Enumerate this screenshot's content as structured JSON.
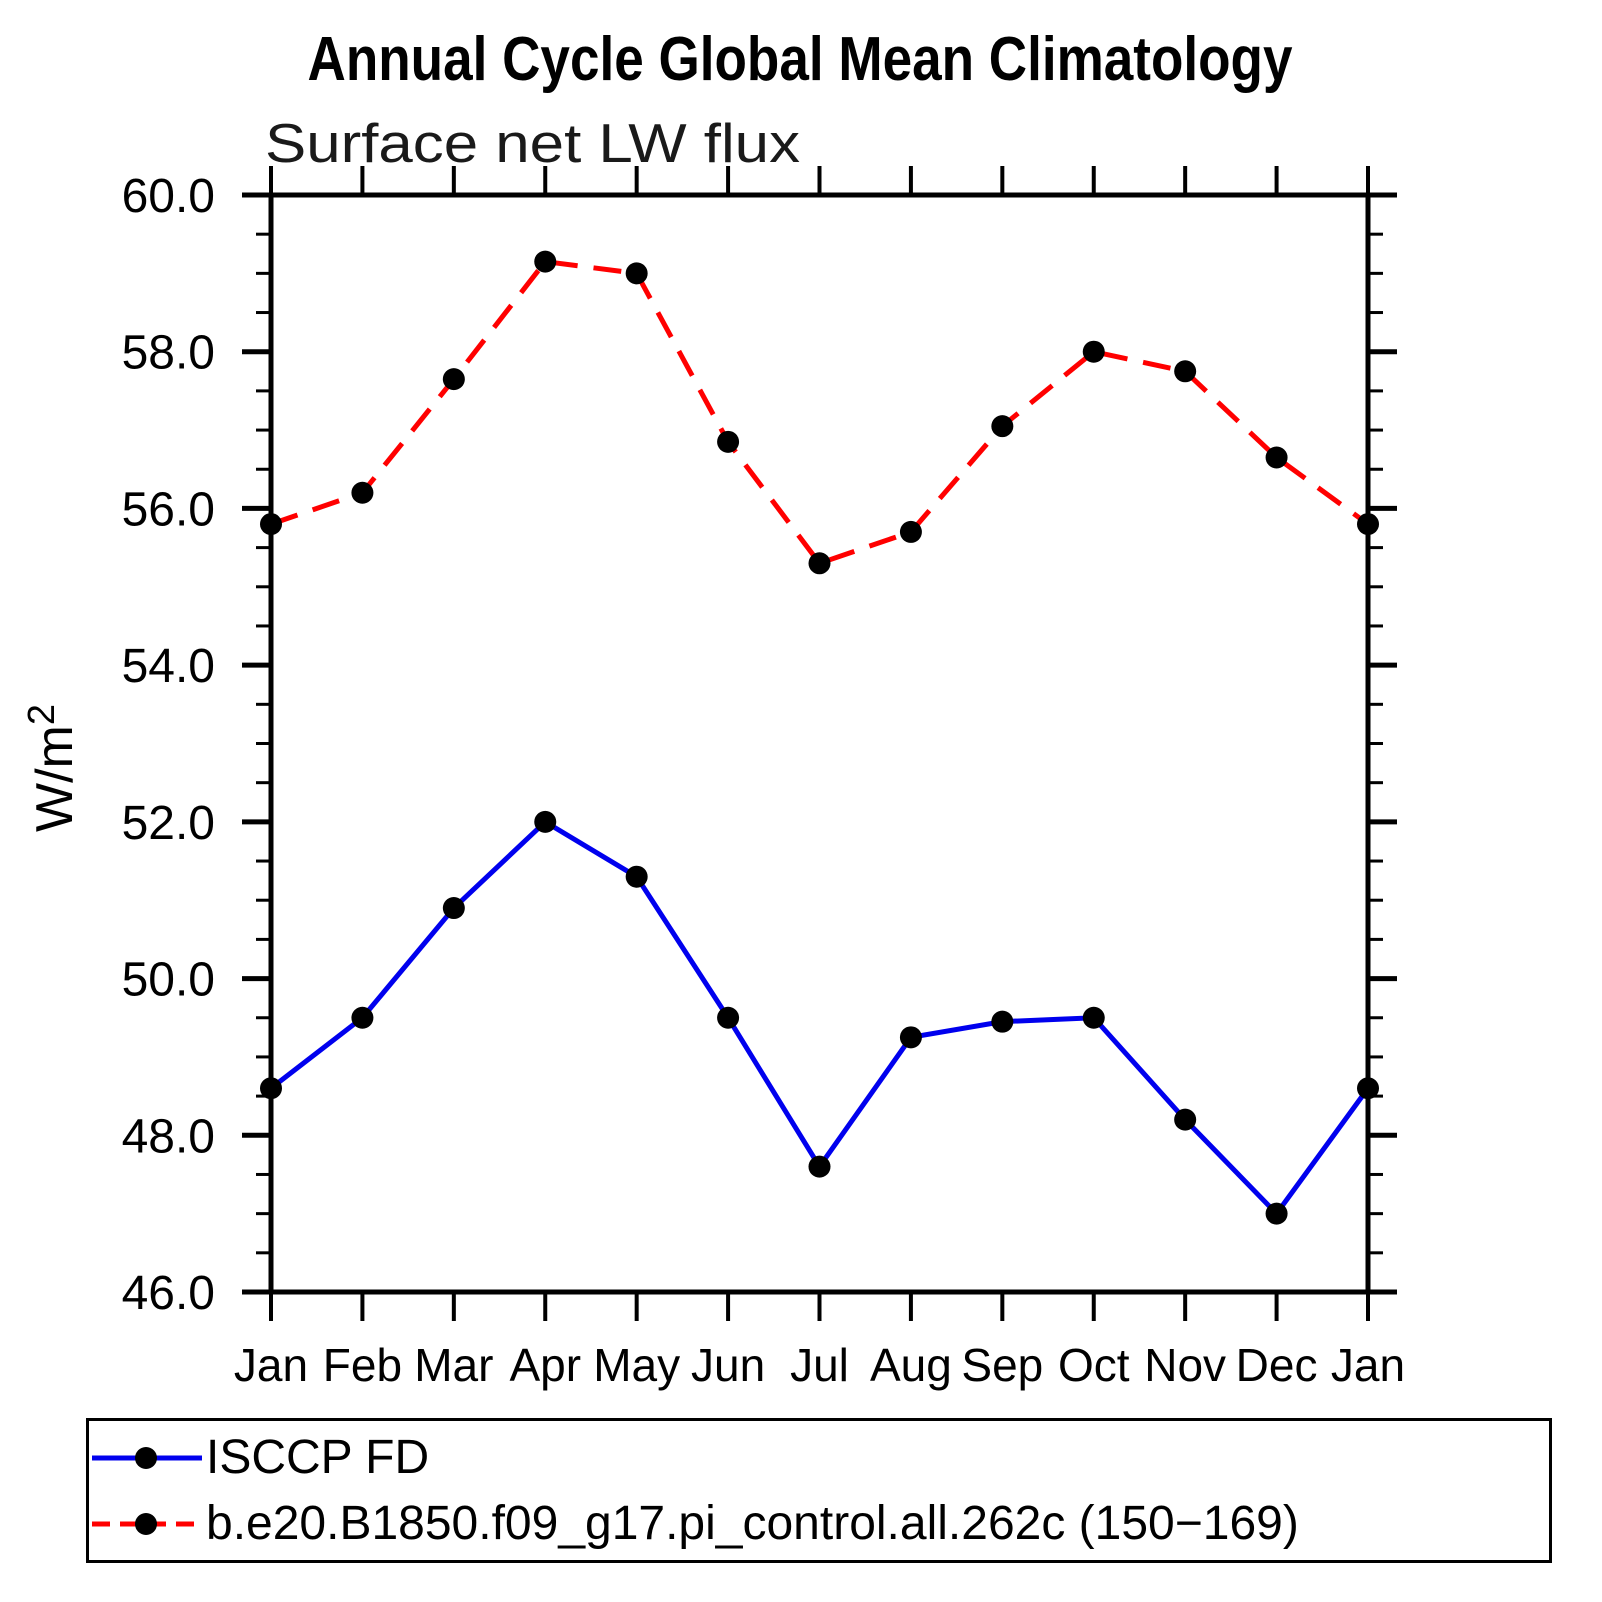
{
  "title": "Annual Cycle Global Mean Climatology",
  "subtitle": "Surface net LW flux",
  "ylabel": {
    "base": "W/m",
    "sup": "2"
  },
  "chart_data": {
    "type": "line",
    "title": "Annual Cycle Global Mean Climatology",
    "subtitle": "Surface net LW flux",
    "ylabel": "W/m^2",
    "x_categories": [
      "Jan",
      "Feb",
      "Mar",
      "Apr",
      "May",
      "Jun",
      "Jul",
      "Aug",
      "Sep",
      "Oct",
      "Nov",
      "Dec",
      "Jan"
    ],
    "ylim": [
      46.0,
      60.0
    ],
    "ytick_major_step": 2.0,
    "ytick_minor_step": 0.5,
    "ytick_labels": [
      "46.0",
      "48.0",
      "50.0",
      "52.0",
      "54.0",
      "56.0",
      "58.0",
      "60.0"
    ],
    "grid": false,
    "legend_position": "bottom-left",
    "axis_color": "#000000",
    "series": [
      {
        "name": "ISCCP FD",
        "line_color": "#0000ee",
        "line_style": "solid",
        "marker": "filled-circle",
        "marker_color": "#000000",
        "values": [
          48.6,
          49.5,
          50.9,
          52.0,
          51.3,
          49.5,
          47.6,
          49.25,
          49.45,
          49.5,
          48.2,
          47.0,
          48.6
        ]
      },
      {
        "name": "b.e20.B1850.f09_g17.pi_control.all.262c (150−169)",
        "line_color": "#ff0000",
        "line_style": "dashed",
        "marker": "filled-circle",
        "marker_color": "#000000",
        "values": [
          55.8,
          56.2,
          57.65,
          59.15,
          59.0,
          56.85,
          55.3,
          55.7,
          57.05,
          58.0,
          57.75,
          56.65,
          55.8
        ]
      }
    ]
  }
}
